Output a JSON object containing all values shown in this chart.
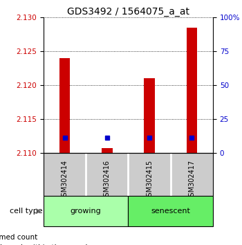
{
  "title": "GDS3492 / 1564075_a_at",
  "samples": [
    "GSM302414",
    "GSM302416",
    "GSM302415",
    "GSM302417"
  ],
  "red_values": [
    2.124,
    2.1108,
    2.121,
    2.1285
  ],
  "blue_values": [
    2.1123,
    2.1123,
    2.1123,
    2.1123
  ],
  "blue_pct": [
    5,
    5,
    5,
    5
  ],
  "ymin": 2.11,
  "ymax": 2.13,
  "yticks_left": [
    2.11,
    2.115,
    2.12,
    2.125,
    2.13
  ],
  "yticks_right": [
    0,
    25,
    50,
    75,
    100
  ],
  "group_label": "cell type",
  "bar_width": 0.25,
  "blue_marker_size": 5,
  "red_color": "#cc0000",
  "blue_color": "#0000cc",
  "background_label": "#cccccc",
  "background_growing": "#aaffaa",
  "background_senescent": "#66ee66",
  "title_fontsize": 10,
  "tick_fontsize": 7.5,
  "label_fontsize": 7,
  "group_fontsize": 8,
  "legend_fontsize": 7.5
}
